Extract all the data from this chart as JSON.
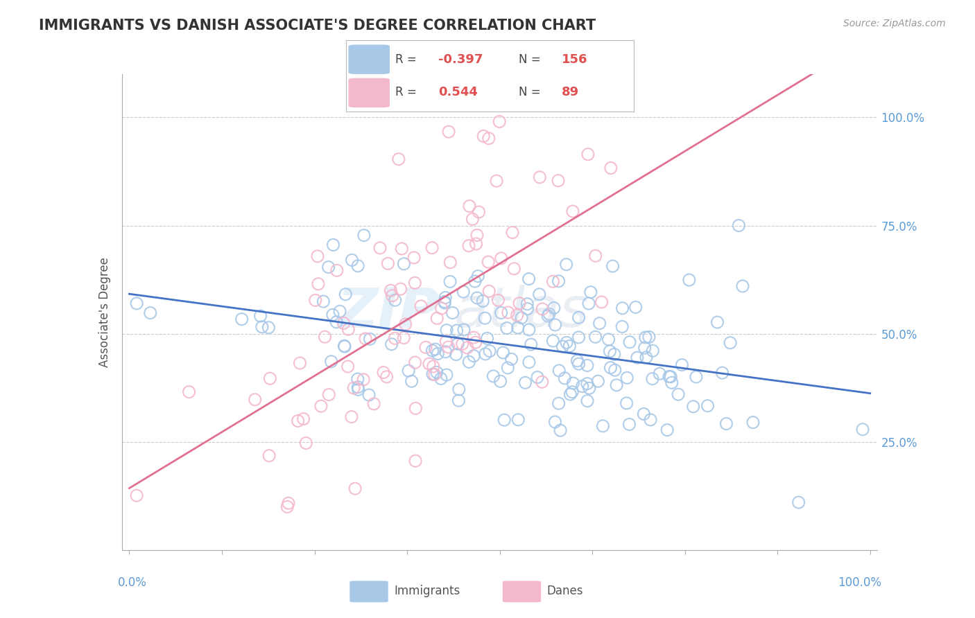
{
  "title": "IMMIGRANTS VS DANISH ASSOCIATE'S DEGREE CORRELATION CHART",
  "source": "Source: ZipAtlas.com",
  "ylabel": "Associate's Degree",
  "blue_color": "#a8c8e8",
  "pink_color": "#f4b8cc",
  "blue_line_color": "#4472c4",
  "pink_line_color": "#e07090",
  "blue_R": -0.397,
  "blue_N": 156,
  "pink_R": 0.544,
  "pink_N": 89,
  "watermark_text": "ZIP",
  "watermark_text2": "atlas",
  "background_color": "#ffffff",
  "grid_color": "#cccccc",
  "title_color": "#333333",
  "source_color": "#999999",
  "label_color": "#5b9bd5",
  "seed": 42,
  "legend_R_color": "#e05050",
  "legend_text_color": "#444444"
}
